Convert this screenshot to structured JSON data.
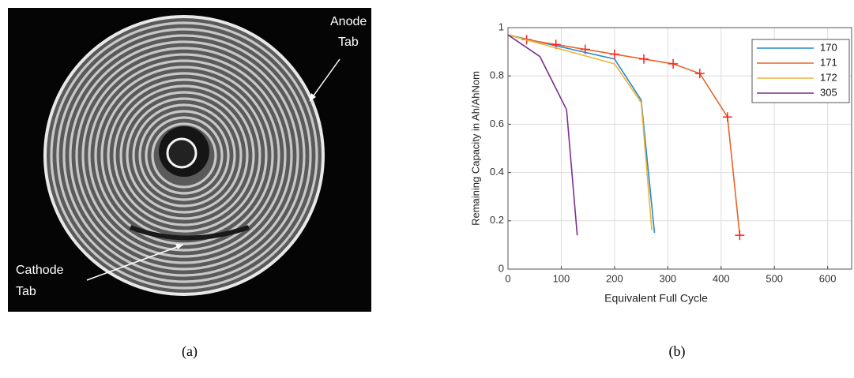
{
  "panel_a": {
    "annotations": [
      [
        "Anode",
        "Tab"
      ],
      [
        "Cathode",
        "Tab"
      ]
    ],
    "label": "(a)"
  },
  "panel_b": {
    "label": "(b)"
  },
  "chart_data": {
    "type": "line",
    "xlabel": "Equivalent Full Cycle",
    "ylabel": "Remaining Capacity in Ah/AhNom",
    "xlim": [
      0,
      645
    ],
    "ylim": [
      0,
      1
    ],
    "xticks": [
      0,
      100,
      200,
      300,
      400,
      500,
      600
    ],
    "yticks": [
      0,
      0.2,
      0.4,
      0.6,
      0.8,
      1
    ],
    "grid": true,
    "legend": "upper right",
    "series": [
      {
        "name": "170",
        "color": "#1f8bd0",
        "x": [
          0,
          100,
          200,
          250,
          275
        ],
        "values": [
          0.97,
          0.92,
          0.87,
          0.7,
          0.15
        ]
      },
      {
        "name": "171",
        "color": "#e8642a",
        "marker": "+",
        "marker_color": "#ff2020",
        "x": [
          0,
          35,
          90,
          145,
          200,
          255,
          310,
          360,
          412,
          435
        ],
        "values": [
          0.97,
          0.95,
          0.93,
          0.91,
          0.89,
          0.87,
          0.85,
          0.81,
          0.63,
          0.14
        ]
      },
      {
        "name": "172",
        "color": "#f2b233",
        "x": [
          0,
          100,
          200,
          250,
          270
        ],
        "values": [
          0.97,
          0.91,
          0.85,
          0.69,
          0.16
        ]
      },
      {
        "name": "305",
        "color": "#7e2f8e",
        "x": [
          0,
          60,
          110,
          130
        ],
        "values": [
          0.97,
          0.88,
          0.66,
          0.14
        ]
      }
    ]
  }
}
